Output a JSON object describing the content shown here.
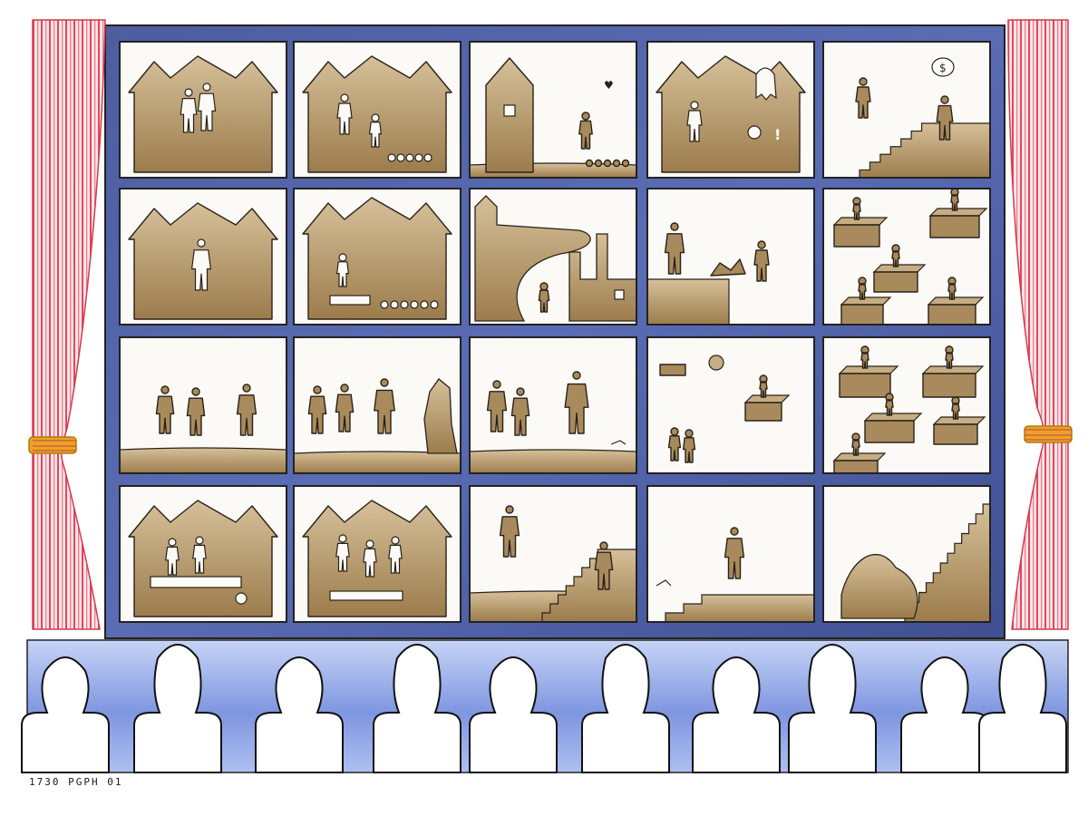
{
  "artwork": {
    "caption_code": "1730 PGPH 01",
    "speech_bubble_symbol": "$",
    "alarm_symbol": "!",
    "heart_symbol": "♥"
  },
  "colors": {
    "window_frame": "#4b5c9e",
    "window_frame_dark": "#3a4888",
    "curtain_stripe": "#e8445a",
    "curtain_base": "#fbe9ec",
    "curtain_tie": "#e6a522",
    "sepia": "#a88a5c",
    "audience_wash": "#7e96e0",
    "audience_light": "#c9d5f5"
  },
  "panels": [
    {
      "row": 1,
      "col": 1,
      "scene": "couple-in-house"
    },
    {
      "row": 1,
      "col": 2,
      "scene": "family-in-house"
    },
    {
      "row": 1,
      "col": 3,
      "scene": "walker-leaving-house"
    },
    {
      "row": 1,
      "col": 4,
      "scene": "ghost-in-house"
    },
    {
      "row": 1,
      "col": 5,
      "scene": "stairs-and-banker"
    },
    {
      "row": 2,
      "col": 1,
      "scene": "figure-in-house"
    },
    {
      "row": 2,
      "col": 2,
      "scene": "crowded-house"
    },
    {
      "row": 2,
      "col": 3,
      "scene": "house-to-factory"
    },
    {
      "row": 2,
      "col": 4,
      "scene": "cliff-fall"
    },
    {
      "row": 2,
      "col": 5,
      "scene": "floating-desks"
    },
    {
      "row": 3,
      "col": 1,
      "scene": "dancers"
    },
    {
      "row": 3,
      "col": 2,
      "scene": "dancers-and-statue"
    },
    {
      "row": 3,
      "col": 3,
      "scene": "dancers-standing-figure"
    },
    {
      "row": 3,
      "col": 4,
      "scene": "scattered-desks"
    },
    {
      "row": 3,
      "col": 5,
      "scene": "floating-desks-2"
    },
    {
      "row": 4,
      "col": 1,
      "scene": "family-table-house"
    },
    {
      "row": 4,
      "col": 2,
      "scene": "party-house"
    },
    {
      "row": 4,
      "col": 3,
      "scene": "stairs-runners"
    },
    {
      "row": 4,
      "col": 4,
      "scene": "leaping-figure"
    },
    {
      "row": 4,
      "col": 5,
      "scene": "pile-at-stairs"
    }
  ]
}
